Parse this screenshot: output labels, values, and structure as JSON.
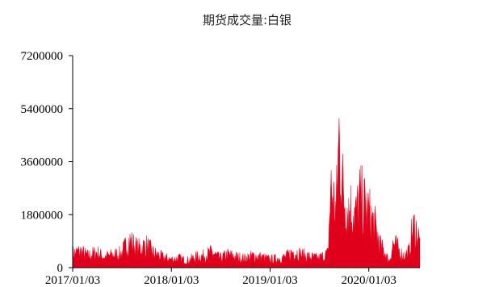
{
  "chart_data": {
    "type": "area",
    "title": "期货成交量:白银",
    "xlabel": "",
    "ylabel": "",
    "ylim": [
      0,
      7200000
    ],
    "yticks": [
      "0",
      "1800000",
      "3600000",
      "5400000",
      "7200000"
    ],
    "ytick_values": [
      0,
      1800000,
      3600000,
      5400000,
      7200000
    ],
    "xticks": [
      "2017/01/03",
      "2018/01/03",
      "2019/01/03",
      "2020/01/03"
    ],
    "xtick_values": [
      "2017-01-03",
      "2018-01-03",
      "2019-01-03",
      "2020-01-03"
    ],
    "xlim": [
      "2017-01-03",
      "2020-07-10"
    ],
    "grid": false,
    "legend": "none",
    "color": "#e0001b",
    "series": [
      {
        "x": [
          "2017-01-03",
          "2017-02-01",
          "2017-03-01",
          "2017-04-01",
          "2017-05-01",
          "2017-06-01",
          "2017-07-01",
          "2017-08-01",
          "2017-09-01",
          "2017-10-01",
          "2017-11-01",
          "2017-12-01",
          "2018-01-03",
          "2018-02-01",
          "2018-03-01",
          "2018-04-01",
          "2018-05-01",
          "2018-06-01",
          "2018-07-01",
          "2018-08-01",
          "2018-09-01",
          "2018-10-01",
          "2018-11-01",
          "2018-12-01",
          "2019-01-03",
          "2019-02-01",
          "2019-03-01",
          "2019-04-01",
          "2019-05-01",
          "2019-06-01",
          "2019-07-01",
          "2019-07-20",
          "2019-08-05",
          "2019-08-15",
          "2019-08-28",
          "2019-09-04",
          "2019-09-15",
          "2019-10-01",
          "2019-10-15",
          "2019-11-01",
          "2019-11-15",
          "2019-12-01",
          "2019-12-15",
          "2020-01-03",
          "2020-01-20",
          "2020-02-01",
          "2020-02-15",
          "2020-03-01",
          "2020-03-10",
          "2020-03-20",
          "2020-04-01",
          "2020-04-15",
          "2020-05-01",
          "2020-05-15",
          "2020-06-01",
          "2020-06-10",
          "2020-06-20",
          "2020-07-01",
          "2020-07-10"
        ],
        "values": [
          600000,
          700000,
          500000,
          650000,
          450000,
          550000,
          600000,
          1150000,
          800000,
          950000,
          600000,
          450000,
          350000,
          400000,
          300000,
          450000,
          500000,
          650000,
          400000,
          550000,
          450000,
          400000,
          500000,
          450000,
          350000,
          400000,
          450000,
          700000,
          550000,
          450000,
          400000,
          500000,
          600000,
          3300000,
          2800000,
          2400000,
          5500000,
          3100000,
          2600000,
          2500000,
          2200000,
          2900000,
          2700000,
          2300000,
          1900000,
          1500000,
          900000,
          700000,
          450000,
          300000,
          1000000,
          900000,
          600000,
          500000,
          700000,
          1500000,
          1700000,
          1500000,
          1000000
        ]
      }
    ]
  }
}
